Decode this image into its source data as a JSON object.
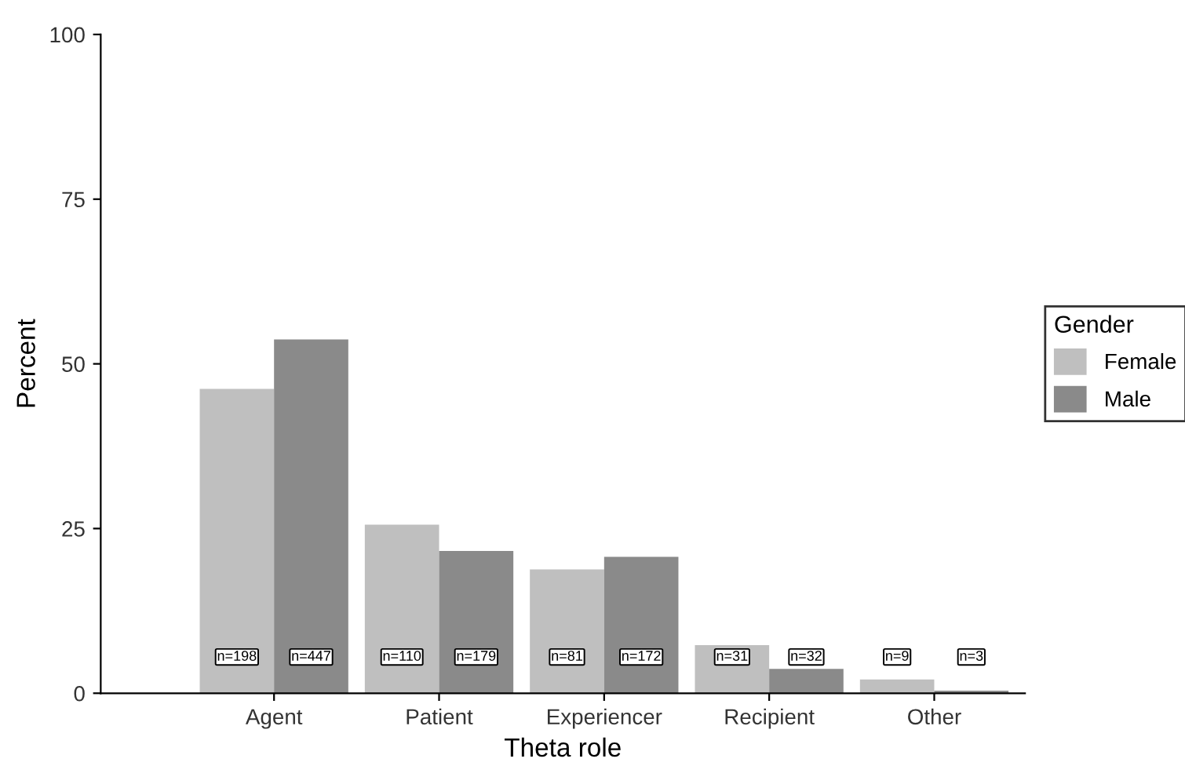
{
  "chart_data": {
    "type": "bar",
    "xlabel": "Theta role",
    "ylabel": "Percent",
    "legend_title": "Gender",
    "legend": "right",
    "grid": false,
    "categories": [
      "Agent",
      "Patient",
      "Experiencer",
      "Recipient",
      "Other"
    ],
    "ylim": [
      0,
      100
    ],
    "yticks": [
      0,
      25,
      50,
      75,
      100
    ],
    "series": [
      {
        "name": "Female",
        "color": "#bfbfbf",
        "values": [
          46.2,
          25.6,
          18.8,
          7.3,
          2.1
        ]
      },
      {
        "name": "Male",
        "color": "#8a8a8a",
        "values": [
          53.7,
          21.6,
          20.7,
          3.7,
          0.4
        ]
      }
    ],
    "annotations": [
      "n=198",
      "n=447",
      "n=110",
      "n=179",
      "n=81",
      "n=172",
      "n=31",
      "n=32",
      "n=9",
      "n=3"
    ]
  }
}
